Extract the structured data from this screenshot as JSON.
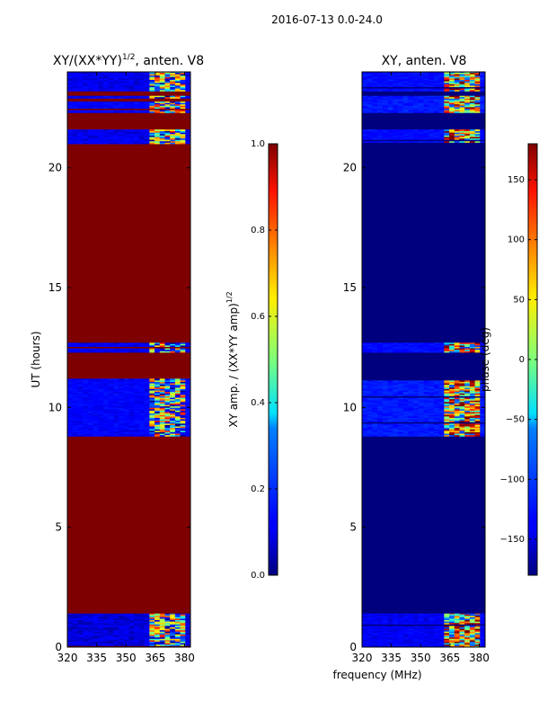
{
  "figure": {
    "suptitle": "2016-07-13 0.0-24.0",
    "xlabel_shared": "frequency (MHz)"
  },
  "colormap": "jet",
  "chart_data": [
    {
      "type": "heatmap",
      "title_base": "XY/(XX*YY)",
      "title_exp": "1/2",
      "title_suffix": ", anten. V8",
      "title": "XY/(XX*YY)^(1/2), anten. V8",
      "ylabel": "UT (hours)",
      "xlim": [
        320,
        383
      ],
      "ylim": [
        0,
        24
      ],
      "xticks": [
        320,
        335,
        350,
        365,
        380
      ],
      "yticks": [
        0,
        5,
        10,
        15,
        20
      ],
      "colorbar": {
        "label_base": "XY amp. / (XX*YY amp)",
        "label_exp": "1/2",
        "label": "XY amp. / (XX*YY amp)^(1/2)",
        "vmin": 0.0,
        "vmax": 1.0,
        "ticks": [
          0.0,
          0.2,
          0.4,
          0.6,
          0.8,
          1.0
        ],
        "tick_labels": [
          "0.0",
          "0.2",
          "0.4",
          "0.6",
          "0.8",
          "1.0"
        ]
      },
      "fill_value": 1.0,
      "data_bands": [
        {
          "t0": 0.0,
          "t1": 1.4,
          "level": 0.08
        },
        {
          "t0": 8.8,
          "t1": 11.2,
          "level": 0.12
        },
        {
          "t0": 12.3,
          "t1": 12.7,
          "level": 0.1
        },
        {
          "t0": 21.0,
          "t1": 21.6,
          "level": 0.1
        },
        {
          "t0": 22.3,
          "t1": 23.0,
          "level": 0.12
        },
        {
          "t0": 23.2,
          "t1": 24.0,
          "level": 0.1
        }
      ],
      "rfi_freq_range": [
        362,
        381
      ],
      "rfi_level": 0.45
    },
    {
      "type": "heatmap",
      "title": "XY, anten. V8",
      "xlabel": "frequency (MHz)",
      "xlim": [
        320,
        383
      ],
      "ylim": [
        0,
        24
      ],
      "xticks": [
        320,
        335,
        350,
        365,
        380
      ],
      "yticks": [
        0,
        5,
        10,
        15,
        20
      ],
      "colorbar": {
        "label": "phase (deg)",
        "vmin": -180,
        "vmax": 180,
        "ticks": [
          -150,
          -100,
          -50,
          0,
          50,
          100,
          150
        ],
        "tick_labels": [
          "−150",
          "−100",
          "−50",
          "0",
          "50",
          "100",
          "150"
        ]
      },
      "fill_value": -180,
      "data_bands": [
        {
          "t0": 0.0,
          "t1": 1.4,
          "level": -140
        },
        {
          "t0": 8.8,
          "t1": 11.2,
          "level": -120
        },
        {
          "t0": 12.3,
          "t1": 12.7,
          "level": -130
        },
        {
          "t0": 21.0,
          "t1": 21.6,
          "level": -130
        },
        {
          "t0": 22.3,
          "t1": 23.0,
          "level": -120
        },
        {
          "t0": 23.2,
          "t1": 24.0,
          "level": -130
        }
      ],
      "rfi_freq_range": [
        362,
        381
      ],
      "rfi_level": 60
    }
  ]
}
